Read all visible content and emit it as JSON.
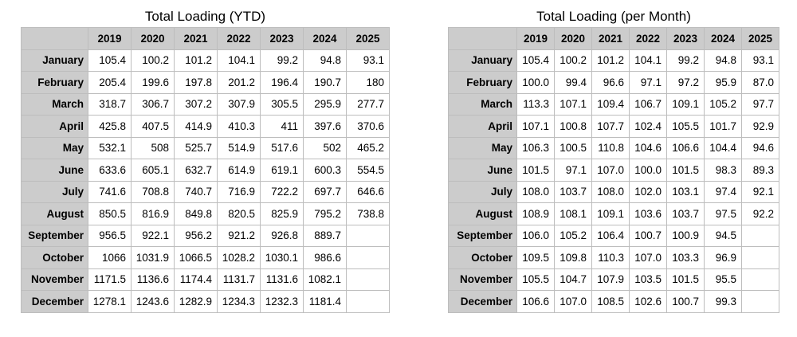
{
  "years": [
    "2019",
    "2020",
    "2021",
    "2022",
    "2023",
    "2024",
    "2025"
  ],
  "months": [
    "January",
    "February",
    "March",
    "April",
    "May",
    "June",
    "July",
    "August",
    "September",
    "October",
    "November",
    "December"
  ],
  "ytd": {
    "title": "Total Loading (YTD)",
    "rows": [
      [
        "105.4",
        "100.2",
        "101.2",
        "104.1",
        "99.2",
        "94.8",
        "93.1"
      ],
      [
        "205.4",
        "199.6",
        "197.8",
        "201.2",
        "196.4",
        "190.7",
        "180"
      ],
      [
        "318.7",
        "306.7",
        "307.2",
        "307.9",
        "305.5",
        "295.9",
        "277.7"
      ],
      [
        "425.8",
        "407.5",
        "414.9",
        "410.3",
        "411",
        "397.6",
        "370.6"
      ],
      [
        "532.1",
        "508",
        "525.7",
        "514.9",
        "517.6",
        "502",
        "465.2"
      ],
      [
        "633.6",
        "605.1",
        "632.7",
        "614.9",
        "619.1",
        "600.3",
        "554.5"
      ],
      [
        "741.6",
        "708.8",
        "740.7",
        "716.9",
        "722.2",
        "697.7",
        "646.6"
      ],
      [
        "850.5",
        "816.9",
        "849.8",
        "820.5",
        "825.9",
        "795.2",
        "738.8"
      ],
      [
        "956.5",
        "922.1",
        "956.2",
        "921.2",
        "926.8",
        "889.7",
        ""
      ],
      [
        "1066",
        "1031.9",
        "1066.5",
        "1028.2",
        "1030.1",
        "986.6",
        ""
      ],
      [
        "1171.5",
        "1136.6",
        "1174.4",
        "1131.7",
        "1131.6",
        "1082.1",
        ""
      ],
      [
        "1278.1",
        "1243.6",
        "1282.9",
        "1234.3",
        "1232.3",
        "1181.4",
        ""
      ]
    ]
  },
  "per_month": {
    "title": "Total Loading (per Month)",
    "rows": [
      [
        "105.4",
        "100.2",
        "101.2",
        "104.1",
        "99.2",
        "94.8",
        "93.1"
      ],
      [
        "100.0",
        "99.4",
        "96.6",
        "97.1",
        "97.2",
        "95.9",
        "87.0"
      ],
      [
        "113.3",
        "107.1",
        "109.4",
        "106.7",
        "109.1",
        "105.2",
        "97.7"
      ],
      [
        "107.1",
        "100.8",
        "107.7",
        "102.4",
        "105.5",
        "101.7",
        "92.9"
      ],
      [
        "106.3",
        "100.5",
        "110.8",
        "104.6",
        "106.6",
        "104.4",
        "94.6"
      ],
      [
        "101.5",
        "97.1",
        "107.0",
        "100.0",
        "101.5",
        "98.3",
        "89.3"
      ],
      [
        "108.0",
        "103.7",
        "108.0",
        "102.0",
        "103.1",
        "97.4",
        "92.1"
      ],
      [
        "108.9",
        "108.1",
        "109.1",
        "103.6",
        "103.7",
        "97.5",
        "92.2"
      ],
      [
        "106.0",
        "105.2",
        "106.4",
        "100.7",
        "100.9",
        "94.5",
        ""
      ],
      [
        "109.5",
        "109.8",
        "110.3",
        "107.0",
        "103.3",
        "96.9",
        ""
      ],
      [
        "105.5",
        "104.7",
        "107.9",
        "103.5",
        "101.5",
        "95.5",
        ""
      ],
      [
        "106.6",
        "107.0",
        "108.5",
        "102.6",
        "100.7",
        "99.3",
        ""
      ]
    ]
  }
}
